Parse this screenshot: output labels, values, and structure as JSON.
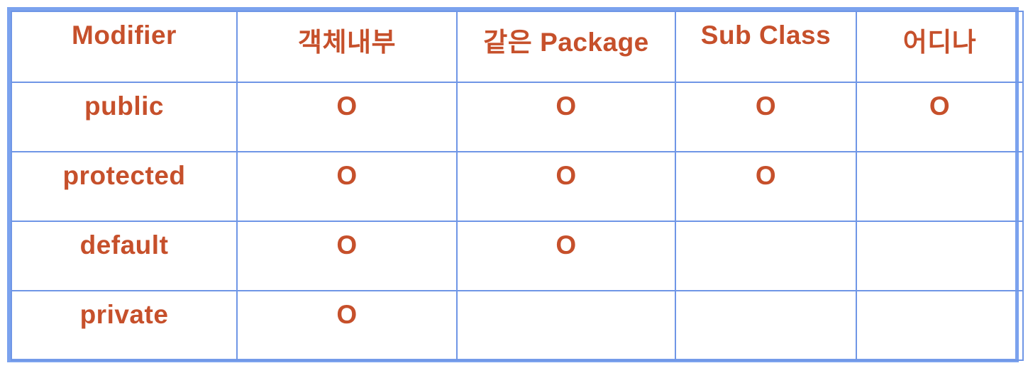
{
  "colors": {
    "text_orange": "#C6502B",
    "grid_blue": "#6F96E6",
    "outer_border_blue": "#7BA2EE",
    "background": "#FFFFFF"
  },
  "chart_data": {
    "type": "table",
    "title": "",
    "columns": [
      "Modifier",
      "객체내부",
      "같은 Package",
      "Sub Class",
      "어디나"
    ],
    "rows": [
      {
        "label": "public",
        "cells": [
          "O",
          "O",
          "O",
          "O"
        ]
      },
      {
        "label": "protected",
        "cells": [
          "O",
          "O",
          "O",
          ""
        ]
      },
      {
        "label": "default",
        "cells": [
          "O",
          "O",
          "",
          ""
        ]
      },
      {
        "label": "private",
        "cells": [
          "O",
          "",
          "",
          ""
        ]
      }
    ],
    "mark_symbol": "O",
    "layout": "grid table, light blue borders, orange bold text, top-aligned centered cells"
  }
}
